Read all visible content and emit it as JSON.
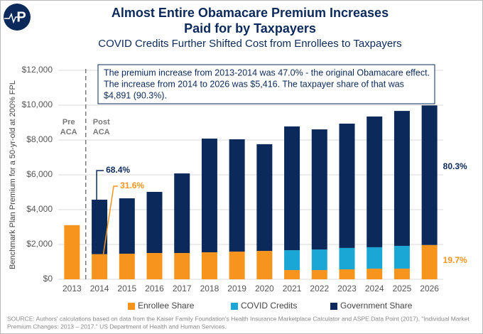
{
  "chart_data": {
    "type": "stacked_bar",
    "title": [
      "Almost Entire Obamacare Premium Increases",
      "Paid for by Taxpayers"
    ],
    "subtitle": "COVID Credits Further Shifted Cost from Enrollees to Taxpayers",
    "logo": "P",
    "y_label": "Benchmark Plan Premium for a 50-yr-old at 200% FPL",
    "categories": [
      "2013",
      "2014",
      "2015",
      "2016",
      "2017",
      "2018",
      "2019",
      "2020",
      "2021",
      "2022",
      "2023",
      "2024",
      "2025",
      "2026"
    ],
    "series": [
      {
        "name": "Enrollee Share",
        "color": "#f7941d",
        "values": [
          3110,
          1444,
          1470,
          1510,
          1510,
          1550,
          1590,
          1630,
          530,
          530,
          570,
          610,
          610,
          1969
        ]
      },
      {
        "name": "COVID Credits",
        "color": "#1aa7d6",
        "values": [
          0,
          0,
          0,
          0,
          0,
          0,
          0,
          0,
          1140,
          1180,
          1230,
          1230,
          1310,
          0
        ]
      },
      {
        "name": "Government Share",
        "color": "#0b2a5b",
        "values": [
          0,
          3127,
          3180,
          3510,
          4570,
          6530,
          6450,
          6130,
          7110,
          6900,
          7140,
          7510,
          7750,
          8018
        ]
      }
    ],
    "ylim": [
      0,
      12000
    ],
    "yticks": [
      {
        "value": 0,
        "label": "$0"
      },
      {
        "value": 2000,
        "label": "$2,000"
      },
      {
        "value": 4000,
        "label": "$4,000"
      },
      {
        "value": 6000,
        "label": "$6,000"
      },
      {
        "value": 8000,
        "label": "$8,000"
      },
      {
        "value": 10000,
        "label": "$10,000"
      },
      {
        "value": 12000,
        "label": "$12,000"
      }
    ],
    "annotations": {
      "box": [
        "The premium increase from 2013-2014 was 47.0% - the original Obamacare effect.",
        "The increase from 2014 to 2026 was $5,416. The taxpayer share of that was",
        "$4,891 (90.3%)."
      ],
      "pre_aca": [
        "Pre",
        "ACA"
      ],
      "post_aca": [
        "Post",
        "ACA"
      ],
      "gov_2014": "68.4%",
      "enrollee_2014": "31.6%",
      "gov_2026": "80.3%",
      "enrollee_2026": "19.7%"
    },
    "source": [
      "SOURCE: Authors' calculations based on data from the Kaiser Family Foundation's Health Insurance Marketplace Calculator and ASPE Data Point (2017), \"Individual Market",
      "Premium Changes: 2013 – 2017.\" US Department of Health and Human Services."
    ]
  }
}
